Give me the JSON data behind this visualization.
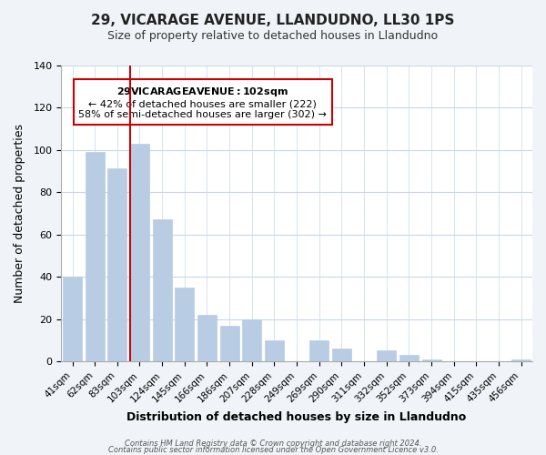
{
  "title": "29, VICARAGE AVENUE, LLANDUDNO, LL30 1PS",
  "subtitle": "Size of property relative to detached houses in Llandudno",
  "xlabel": "Distribution of detached houses by size in Llandudno",
  "ylabel": "Number of detached properties",
  "bar_color": "#b8cce4",
  "bar_edge_color": "#b8cce4",
  "categories": [
    "41sqm",
    "62sqm",
    "83sqm",
    "103sqm",
    "124sqm",
    "145sqm",
    "166sqm",
    "186sqm",
    "207sqm",
    "228sqm",
    "249sqm",
    "269sqm",
    "290sqm",
    "311sqm",
    "332sqm",
    "352sqm",
    "373sqm",
    "394sqm",
    "415sqm",
    "435sqm",
    "456sqm"
  ],
  "values": [
    40,
    99,
    91,
    103,
    67,
    35,
    22,
    17,
    20,
    10,
    0,
    10,
    6,
    0,
    5,
    3,
    1,
    0,
    0,
    0,
    1
  ],
  "ylim": [
    0,
    140
  ],
  "yticks": [
    0,
    20,
    40,
    60,
    80,
    100,
    120,
    140
  ],
  "vline_x": 3,
  "vline_color": "#cc0000",
  "annotation_title": "29 VICARAGE AVENUE: 102sqm",
  "annotation_line1": "← 42% of detached houses are smaller (222)",
  "annotation_line2": "58% of semi-detached houses are larger (302) →",
  "annotation_box_color": "#ffffff",
  "annotation_box_edge_color": "#cc0000",
  "footer_line1": "Contains HM Land Registry data © Crown copyright and database right 2024.",
  "footer_line2": "Contains public sector information licensed under the Open Government Licence v3.0.",
  "background_color": "#f0f4f8",
  "plot_bg_color": "#ffffff",
  "grid_color": "#c8d8e8"
}
